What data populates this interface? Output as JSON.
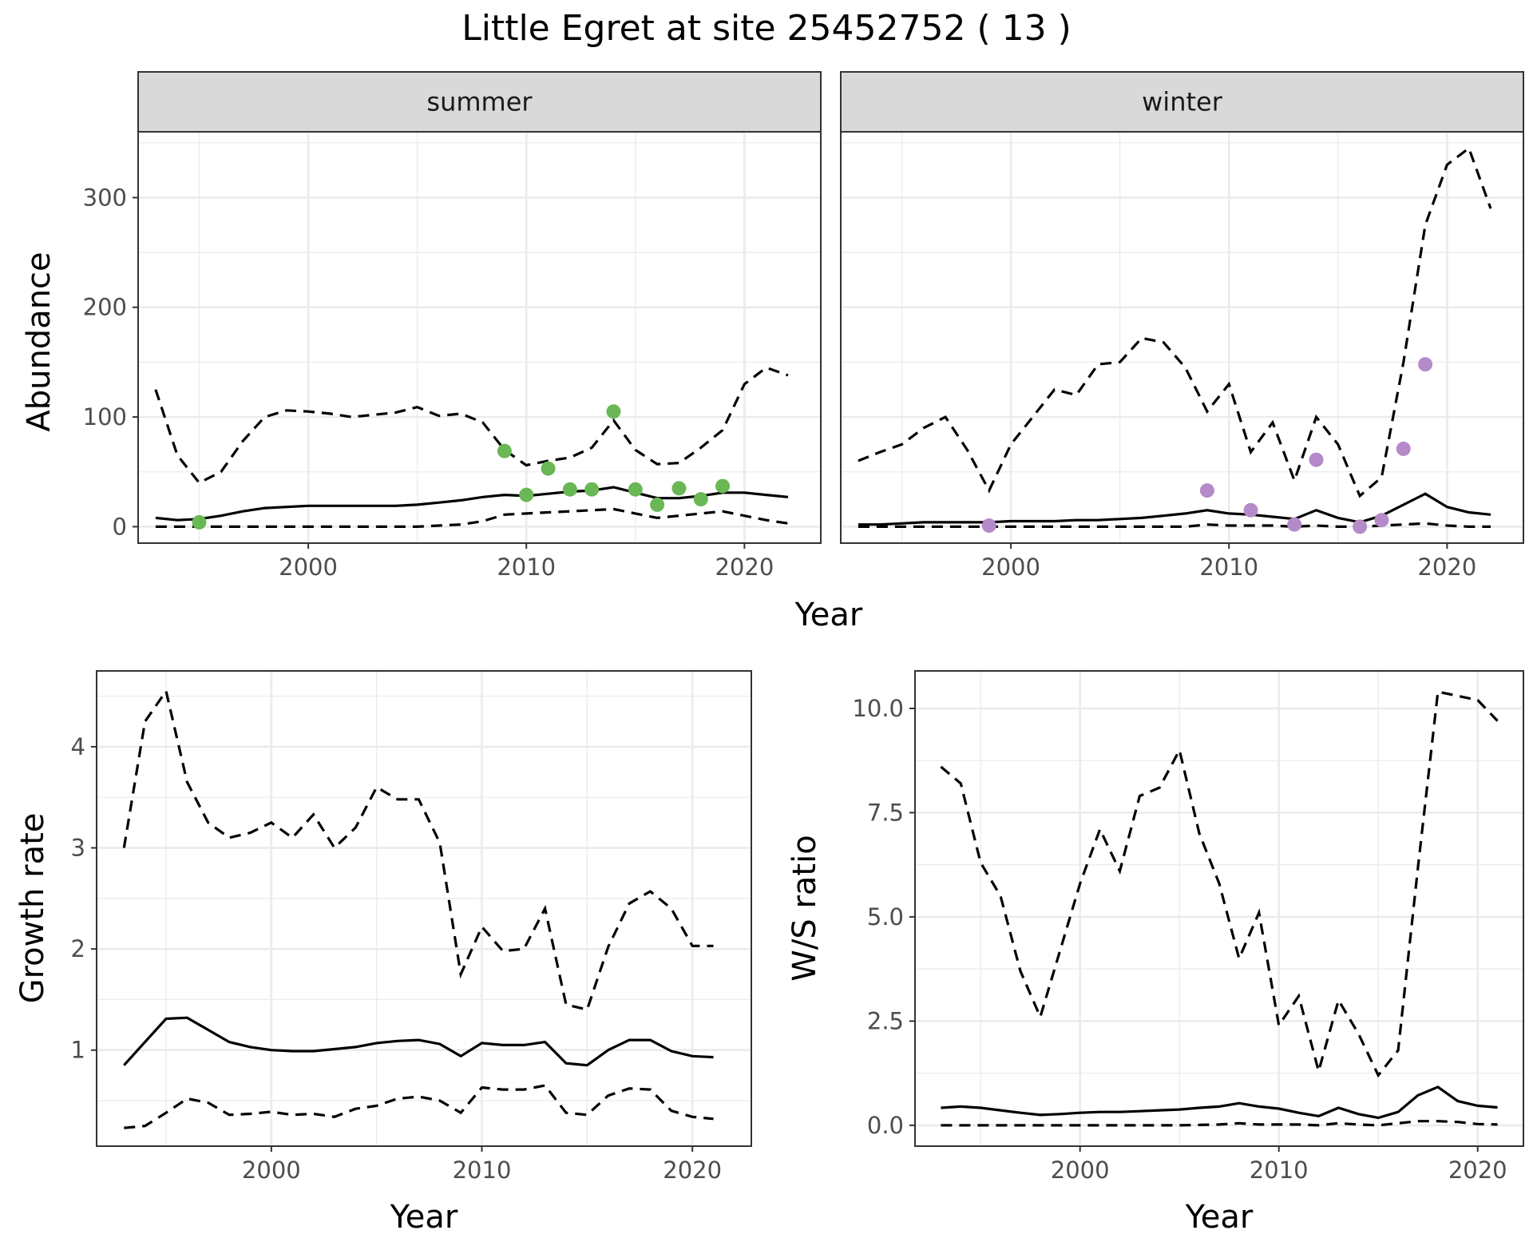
{
  "title": "Little Egret at site 25452752 ( 13 )",
  "colors": {
    "summer_points": "#6ab755",
    "winter_points": "#b48ac9"
  },
  "chart_data": [
    {
      "type": "line",
      "panel": "summer",
      "strip": "summer",
      "xlabel": "",
      "ylabel": "Abundance",
      "xlim": [
        1992.2,
        2023.5
      ],
      "ylim": [
        -15,
        360
      ],
      "xticks": [
        2000,
        2010,
        2020
      ],
      "yticks": [
        0,
        100,
        200,
        300
      ],
      "grid": true,
      "series": [
        {
          "style": "solid",
          "x": [
            1993,
            1994,
            1995,
            1996,
            1997,
            1998,
            1999,
            2000,
            2001,
            2002,
            2003,
            2004,
            2005,
            2006,
            2007,
            2008,
            2009,
            2010,
            2011,
            2012,
            2013,
            2014,
            2015,
            2016,
            2017,
            2018,
            2019,
            2020,
            2021,
            2022
          ],
          "y": [
            8,
            6,
            7,
            10,
            14,
            17,
            18,
            19,
            19,
            19,
            19,
            19,
            20,
            22,
            24,
            27,
            29,
            28,
            30,
            32,
            33,
            36,
            31,
            26,
            26,
            28,
            31,
            31,
            29,
            27
          ]
        },
        {
          "style": "dashed",
          "x": [
            1993,
            1994,
            1995,
            1996,
            1997,
            1998,
            1999,
            2000,
            2001,
            2002,
            2003,
            2004,
            2005,
            2006,
            2007,
            2008,
            2009,
            2010,
            2011,
            2012,
            2013,
            2014,
            2015,
            2016,
            2017,
            2018,
            2019,
            2020,
            2021,
            2022
          ],
          "y": [
            125,
            65,
            40,
            50,
            78,
            100,
            106,
            105,
            103,
            100,
            102,
            104,
            109,
            101,
            103,
            95,
            70,
            56,
            60,
            63,
            72,
            97,
            70,
            57,
            58,
            72,
            88,
            130,
            145,
            138
          ]
        },
        {
          "style": "dashed",
          "x": [
            1993,
            1994,
            1995,
            1996,
            1997,
            1998,
            1999,
            2000,
            2001,
            2002,
            2003,
            2004,
            2005,
            2006,
            2007,
            2008,
            2009,
            2010,
            2011,
            2012,
            2013,
            2014,
            2015,
            2016,
            2017,
            2018,
            2019,
            2020,
            2021,
            2022
          ],
          "y": [
            0,
            0,
            0,
            0,
            0,
            0,
            0,
            0,
            0,
            0,
            0,
            0,
            0,
            1,
            2,
            5,
            11,
            12,
            13,
            14,
            15,
            16,
            12,
            8,
            10,
            12,
            14,
            10,
            6,
            3
          ]
        },
        {
          "style": "points",
          "color": "#6ab755",
          "x": [
            1995,
            2009,
            2010,
            2011,
            2012,
            2013,
            2014,
            2015,
            2016,
            2017,
            2018,
            2019
          ],
          "y": [
            4,
            69,
            29,
            53,
            34,
            34,
            105,
            34,
            20,
            35,
            25,
            37
          ]
        }
      ]
    },
    {
      "type": "line",
      "panel": "winter",
      "strip": "winter",
      "xlabel": "",
      "ylabel": "",
      "xlim": [
        1992.2,
        2023.5
      ],
      "ylim": [
        -15,
        360
      ],
      "xticks": [
        2000,
        2010,
        2020
      ],
      "yticks": [
        0,
        100,
        200,
        300
      ],
      "grid": true,
      "series": [
        {
          "style": "solid",
          "x": [
            1993,
            1994,
            1995,
            1996,
            1997,
            1998,
            1999,
            2000,
            2001,
            2002,
            2003,
            2004,
            2005,
            2006,
            2007,
            2008,
            2009,
            2010,
            2011,
            2012,
            2013,
            2014,
            2015,
            2016,
            2017,
            2018,
            2019,
            2020,
            2021,
            2022
          ],
          "y": [
            2,
            2,
            3,
            4,
            4,
            4,
            4,
            5,
            5,
            5,
            6,
            6,
            7,
            8,
            10,
            12,
            15,
            12,
            11,
            9,
            7,
            15,
            8,
            4,
            10,
            20,
            30,
            18,
            13,
            11
          ]
        },
        {
          "style": "dashed",
          "x": [
            1993,
            1994,
            1995,
            1996,
            1997,
            1998,
            1999,
            2000,
            2001,
            2002,
            2003,
            2004,
            2005,
            2006,
            2007,
            2008,
            2009,
            2010,
            2011,
            2012,
            2013,
            2014,
            2015,
            2016,
            2017,
            2018,
            2019,
            2020,
            2021,
            2022
          ],
          "y": [
            60,
            68,
            75,
            90,
            100,
            70,
            33,
            75,
            100,
            125,
            120,
            148,
            150,
            172,
            168,
            145,
            105,
            130,
            68,
            95,
            42,
            100,
            75,
            28,
            45,
            150,
            275,
            330,
            345,
            290
          ]
        },
        {
          "style": "dashed",
          "x": [
            1993,
            1994,
            1995,
            1996,
            1997,
            1998,
            1999,
            2000,
            2001,
            2002,
            2003,
            2004,
            2005,
            2006,
            2007,
            2008,
            2009,
            2010,
            2011,
            2012,
            2013,
            2014,
            2015,
            2016,
            2017,
            2018,
            2019,
            2020,
            2021,
            2022
          ],
          "y": [
            0,
            0,
            0,
            0,
            0,
            0,
            0,
            0,
            0,
            0,
            0,
            0,
            0,
            0,
            0,
            0,
            2,
            1,
            1,
            1,
            0,
            1,
            0,
            0,
            1,
            2,
            3,
            1,
            0,
            0
          ]
        },
        {
          "style": "points",
          "color": "#b48ac9",
          "x": [
            1999,
            2009,
            2011,
            2013,
            2014,
            2016,
            2017,
            2018,
            2019
          ],
          "y": [
            1,
            33,
            15,
            2,
            61,
            0,
            6,
            71,
            148
          ]
        }
      ]
    },
    {
      "type": "line",
      "panel": "growth",
      "xlabel": "Year",
      "ylabel": "Growth rate",
      "xlim": [
        1991.7,
        2022.8
      ],
      "ylim": [
        0.05,
        4.75
      ],
      "xticks": [
        2000,
        2010,
        2020
      ],
      "yticks": [
        1,
        2,
        3,
        4
      ],
      "grid": true,
      "series": [
        {
          "style": "solid",
          "x": [
            1993,
            1994,
            1995,
            1996,
            1997,
            1998,
            1999,
            2000,
            2001,
            2002,
            2003,
            2004,
            2005,
            2006,
            2007,
            2008,
            2009,
            2010,
            2011,
            2012,
            2013,
            2014,
            2015,
            2016,
            2017,
            2018,
            2019,
            2020,
            2021
          ],
          "y": [
            0.85,
            1.08,
            1.31,
            1.32,
            1.2,
            1.08,
            1.03,
            1.0,
            0.99,
            0.99,
            1.01,
            1.03,
            1.07,
            1.09,
            1.1,
            1.06,
            0.94,
            1.07,
            1.05,
            1.05,
            1.08,
            0.87,
            0.85,
            1.0,
            1.1,
            1.1,
            0.99,
            0.94,
            0.93
          ]
        },
        {
          "style": "dashed",
          "x": [
            1993,
            1994,
            1995,
            1996,
            1997,
            1998,
            1999,
            2000,
            2001,
            2002,
            2003,
            2004,
            2005,
            2006,
            2007,
            2008,
            2009,
            2010,
            2011,
            2012,
            2013,
            2014,
            2015,
            2016,
            2017,
            2018,
            2019,
            2020,
            2021
          ],
          "y": [
            3.0,
            4.25,
            4.55,
            3.65,
            3.25,
            3.1,
            3.15,
            3.25,
            3.1,
            3.33,
            3.0,
            3.2,
            3.6,
            3.48,
            3.48,
            3.05,
            1.75,
            2.22,
            1.98,
            2.0,
            2.4,
            1.45,
            1.4,
            2.02,
            2.45,
            2.57,
            2.4,
            2.03,
            2.03
          ]
        },
        {
          "style": "dashed",
          "x": [
            1993,
            1994,
            1995,
            1996,
            1997,
            1998,
            1999,
            2000,
            2001,
            2002,
            2003,
            2004,
            2005,
            2006,
            2007,
            2008,
            2009,
            2010,
            2011,
            2012,
            2013,
            2014,
            2015,
            2016,
            2017,
            2018,
            2019,
            2020,
            2021
          ],
          "y": [
            0.23,
            0.25,
            0.38,
            0.52,
            0.48,
            0.36,
            0.37,
            0.39,
            0.36,
            0.37,
            0.34,
            0.42,
            0.45,
            0.52,
            0.54,
            0.5,
            0.38,
            0.63,
            0.61,
            0.61,
            0.65,
            0.38,
            0.36,
            0.55,
            0.62,
            0.61,
            0.4,
            0.34,
            0.32
          ]
        }
      ]
    },
    {
      "type": "line",
      "panel": "ws_ratio",
      "xlabel": "Year",
      "ylabel": "W/S ratio",
      "xlim": [
        1991.7,
        2022.3
      ],
      "ylim": [
        -0.5,
        10.9
      ],
      "xticks": [
        2000,
        2010,
        2020
      ],
      "yticks": [
        0.0,
        2.5,
        5.0,
        7.5,
        10.0
      ],
      "ytick_labels": [
        "0.0",
        "2.5",
        "5.0",
        "7.5",
        "10.0"
      ],
      "grid": true,
      "series": [
        {
          "style": "solid",
          "x": [
            1993,
            1994,
            1995,
            1996,
            1997,
            1998,
            1999,
            2000,
            2001,
            2002,
            2003,
            2004,
            2005,
            2006,
            2007,
            2008,
            2009,
            2010,
            2011,
            2012,
            2013,
            2014,
            2015,
            2016,
            2017,
            2018,
            2019,
            2020,
            2021
          ],
          "y": [
            0.42,
            0.45,
            0.42,
            0.36,
            0.3,
            0.25,
            0.27,
            0.3,
            0.32,
            0.32,
            0.34,
            0.36,
            0.38,
            0.42,
            0.45,
            0.53,
            0.45,
            0.4,
            0.3,
            0.22,
            0.42,
            0.27,
            0.18,
            0.32,
            0.72,
            0.92,
            0.58,
            0.47,
            0.43
          ]
        },
        {
          "style": "dashed",
          "x": [
            1993,
            1994,
            1995,
            1996,
            1997,
            1998,
            1999,
            2000,
            2001,
            2002,
            2003,
            2004,
            2005,
            2006,
            2007,
            2008,
            2009,
            2010,
            2011,
            2012,
            2013,
            2014,
            2015,
            2016,
            2017,
            2018,
            2019,
            2020,
            2021
          ],
          "y": [
            8.6,
            8.2,
            6.3,
            5.5,
            3.7,
            2.6,
            4.2,
            5.8,
            7.1,
            6.1,
            7.9,
            8.1,
            9.0,
            7.0,
            5.8,
            4.0,
            5.1,
            2.4,
            3.1,
            1.3,
            3.0,
            2.2,
            1.2,
            1.8,
            6.2,
            10.4,
            10.3,
            10.2,
            9.7
          ]
        },
        {
          "style": "dashed",
          "x": [
            1993,
            1994,
            1995,
            1996,
            1997,
            1998,
            1999,
            2000,
            2001,
            2002,
            2003,
            2004,
            2005,
            2006,
            2007,
            2008,
            2009,
            2010,
            2011,
            2012,
            2013,
            2014,
            2015,
            2016,
            2017,
            2018,
            2019,
            2020,
            2021
          ],
          "y": [
            0.0,
            0.0,
            0.0,
            0.0,
            0.0,
            0.0,
            0.0,
            0.0,
            0.0,
            0.0,
            0.0,
            0.0,
            0.0,
            0.01,
            0.02,
            0.05,
            0.02,
            0.02,
            0.02,
            0.0,
            0.05,
            0.02,
            0.0,
            0.05,
            0.1,
            0.1,
            0.08,
            0.03,
            0.02
          ]
        }
      ]
    }
  ],
  "shared_xlabel_top": "Year"
}
